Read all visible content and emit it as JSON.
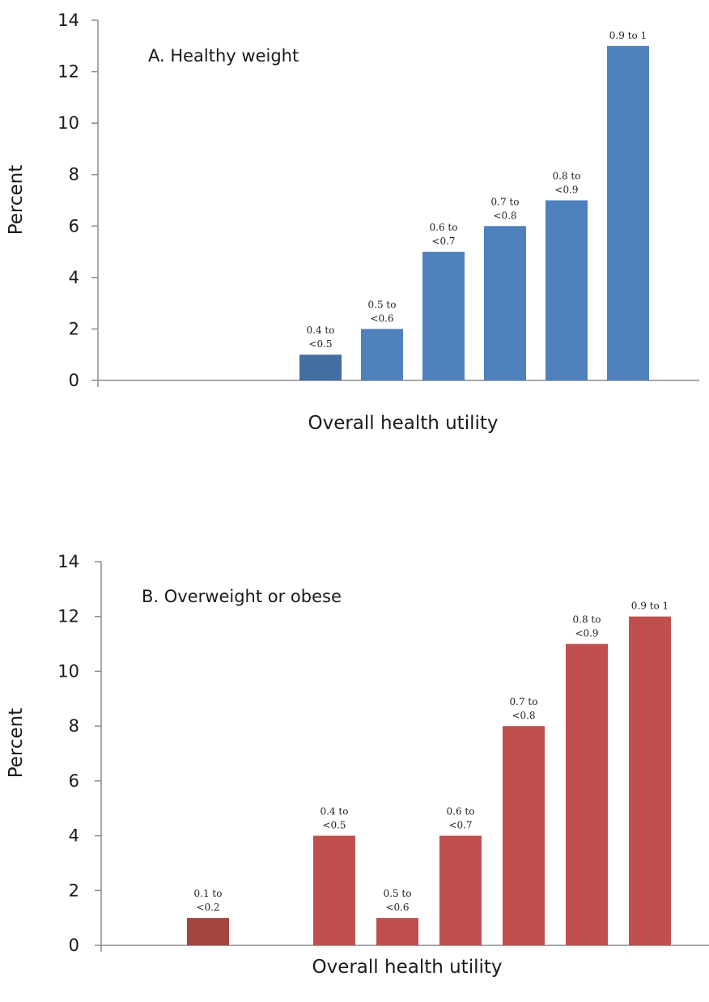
{
  "chart_data": [
    {
      "type": "bar",
      "title": "A. Healthy weight",
      "xlabel": "Overall health utility",
      "ylabel": "Percent",
      "ylim": [
        0,
        14
      ],
      "yticks": [
        0,
        2,
        4,
        6,
        8,
        10,
        12,
        14
      ],
      "grid": false,
      "legend": "none",
      "color": "#4f81bd",
      "categories": [
        "",
        "",
        "",
        "0.4 to <0.5",
        "0.5 to <0.6",
        "0.6 to <0.7",
        "0.7 to <0.8",
        "0.8 to <0.9",
        "0.9 to 1"
      ],
      "values": [
        0,
        0,
        0,
        1,
        2,
        5,
        6,
        7,
        13
      ],
      "bar_labels": [
        null,
        null,
        null,
        [
          "0.4 to",
          "<0.5"
        ],
        [
          "0.5 to",
          "<0.6"
        ],
        [
          "0.6 to",
          "<0.7"
        ],
        [
          "0.7 to",
          "<0.8"
        ],
        [
          "0.8 to",
          "<0.9"
        ],
        [
          "0.9 to 1"
        ]
      ]
    },
    {
      "type": "bar",
      "title": "B. Overweight or obese",
      "xlabel": "Overall health utility",
      "ylabel": "Percent",
      "ylim": [
        0,
        14
      ],
      "yticks": [
        0,
        2,
        4,
        6,
        8,
        10,
        12,
        14
      ],
      "grid": false,
      "legend": "none",
      "color": "#c0504d",
      "categories": [
        "",
        "0.1 to <0.2",
        "",
        "0.4 to <0.5",
        "0.5 to <0.6",
        "0.6 to <0.7",
        "0.7 to <0.8",
        "0.8 to <0.9",
        "0.9 to 1"
      ],
      "values": [
        0,
        1,
        0,
        4,
        1,
        4,
        8,
        11,
        12
      ],
      "bar_labels": [
        null,
        [
          "0.1 to",
          "<0.2"
        ],
        null,
        [
          "0.4 to",
          "<0.5"
        ],
        [
          "0.5 to",
          "<0.6"
        ],
        [
          "0.6 to",
          "<0.7"
        ],
        [
          "0.7 to",
          "<0.8"
        ],
        [
          "0.8 to",
          "<0.9"
        ],
        [
          "0.9 to 1"
        ]
      ]
    }
  ]
}
